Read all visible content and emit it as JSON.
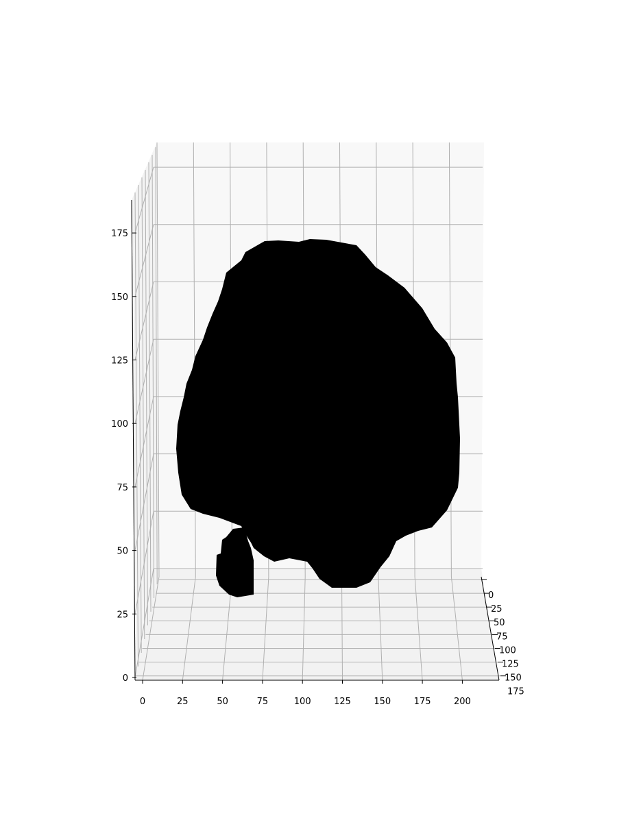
{
  "chart_data": {
    "type": "voxel-3d",
    "title": "",
    "xlabel": "",
    "ylabel": "",
    "zlabel": "",
    "grid": true,
    "x_ticks": [
      "0",
      "25",
      "50",
      "75",
      "100",
      "125",
      "150",
      "175",
      "200"
    ],
    "y_ticks": [
      "0",
      "25",
      "50",
      "75",
      "100",
      "125",
      "150",
      "175"
    ],
    "z_ticks": [
      "0",
      "25",
      "50",
      "75",
      "100",
      "125",
      "150",
      "175"
    ],
    "xlim": [
      0,
      220
    ],
    "ylim": [
      0,
      180
    ],
    "zlim": [
      0,
      190
    ],
    "voxel_color": "#000000",
    "pane_color": "#f7f7f7",
    "grid_color": "#b0b0b0"
  }
}
